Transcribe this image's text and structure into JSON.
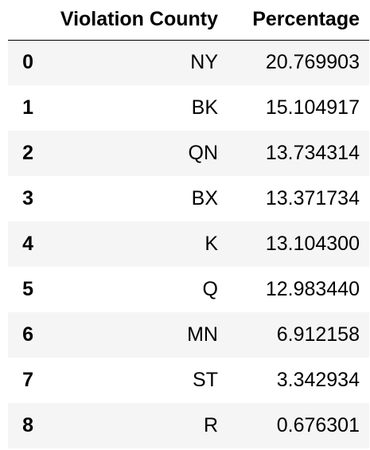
{
  "table": {
    "index_header": "",
    "columns": [
      "Violation County",
      "Percentage"
    ],
    "rows": [
      {
        "index": "0",
        "county": "NY",
        "percentage": "20.769903"
      },
      {
        "index": "1",
        "county": "BK",
        "percentage": "15.104917"
      },
      {
        "index": "2",
        "county": "QN",
        "percentage": "13.734314"
      },
      {
        "index": "3",
        "county": "BX",
        "percentage": "13.371734"
      },
      {
        "index": "4",
        "county": "K",
        "percentage": "13.104300"
      },
      {
        "index": "5",
        "county": "Q",
        "percentage": "12.983440"
      },
      {
        "index": "6",
        "county": "MN",
        "percentage": "6.912158"
      },
      {
        "index": "7",
        "county": "ST",
        "percentage": "3.342934"
      },
      {
        "index": "8",
        "county": "R",
        "percentage": "0.676301"
      }
    ],
    "colors": {
      "stripe": "#f5f5f5",
      "background": "#ffffff",
      "header_rule": "#000000"
    }
  }
}
